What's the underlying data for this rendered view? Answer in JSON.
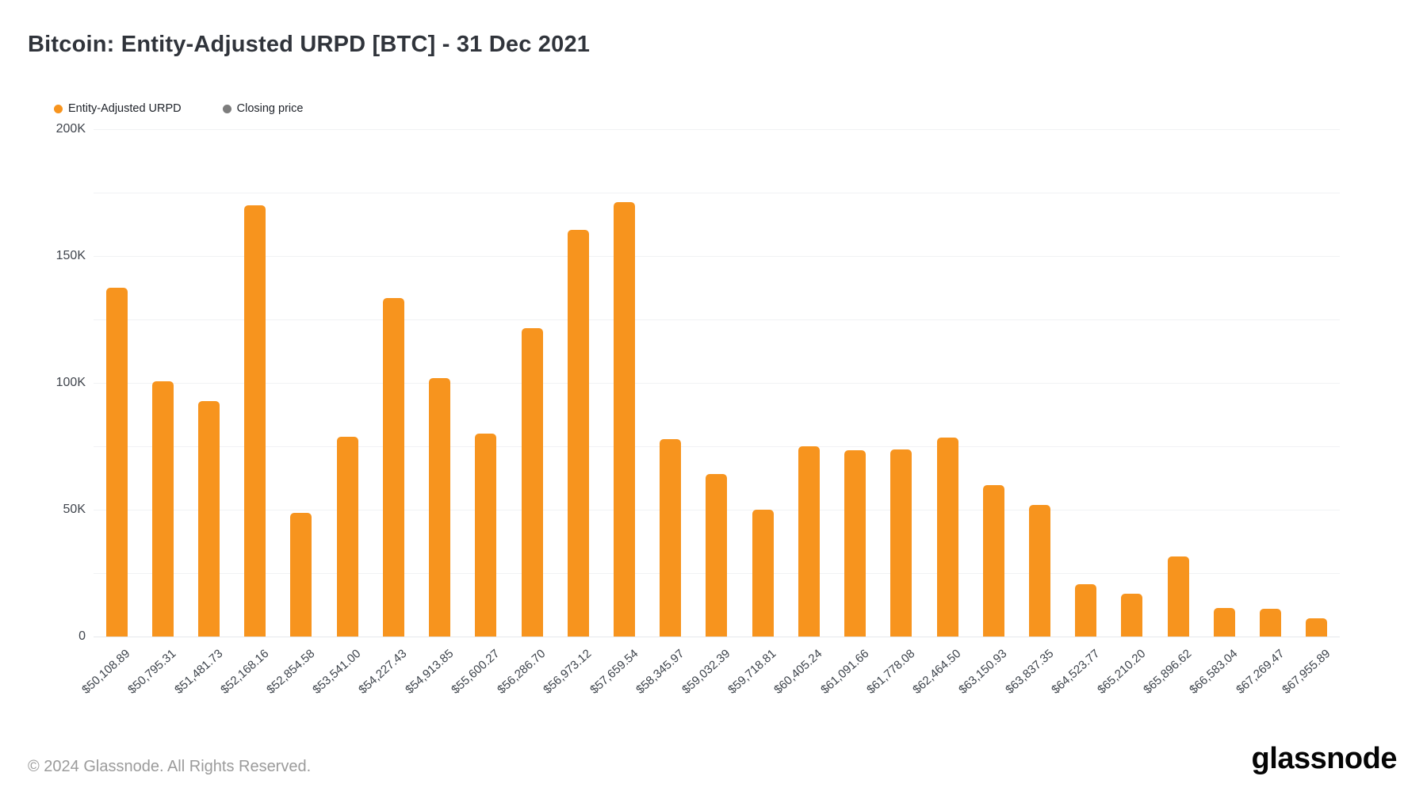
{
  "title": "Bitcoin: Entity-Adjusted URPD [BTC] - 31 Dec 2021",
  "legend": {
    "items": [
      {
        "label": "Entity-Adjusted URPD",
        "color": "#f7941e"
      },
      {
        "label": "Closing price",
        "color": "#7d7d7d"
      }
    ]
  },
  "chart_data": {
    "type": "bar",
    "title": "Bitcoin: Entity-Adjusted URPD [BTC] - 31 Dec 2021",
    "series_name": "Entity-Adjusted URPD",
    "categories": [
      "$50,108.89",
      "$50,795.31",
      "$51,481.73",
      "$52,168.16",
      "$52,854.58",
      "$53,541.00",
      "$54,227.43",
      "$54,913.85",
      "$55,600.27",
      "$56,286.70",
      "$56,973.12",
      "$57,659.54",
      "$58,345.97",
      "$59,032.39",
      "$59,718.81",
      "$60,405.24",
      "$61,091.66",
      "$61,778.08",
      "$62,464.50",
      "$63,150.93",
      "$63,837.35",
      "$64,523.77",
      "$65,210.20",
      "$65,896.62",
      "$66,583.04",
      "$67,269.47",
      "$67,955.89"
    ],
    "values": [
      137500,
      100600,
      92800,
      170000,
      48900,
      78800,
      133400,
      101900,
      80000,
      121600,
      160300,
      171300,
      77800,
      64100,
      50000,
      75000,
      73400,
      73800,
      78500,
      59600,
      51800,
      20500,
      16900,
      31500,
      11200,
      10800,
      7200
    ],
    "xlabel": "",
    "ylabel": "",
    "ylim": [
      0,
      200000
    ],
    "grid_step": 25000,
    "grid": true,
    "legend_position": "top-left",
    "y_ticks": [
      {
        "value": 0,
        "label": "0"
      },
      {
        "value": 50000,
        "label": "50K"
      },
      {
        "value": 100000,
        "label": "100K"
      },
      {
        "value": 150000,
        "label": "150K"
      },
      {
        "value": 200000,
        "label": "200K"
      }
    ],
    "bar_color": "#f7941e"
  },
  "footer": {
    "copyright": "© 2024 Glassnode. All Rights Reserved.",
    "brand": "glassnode"
  }
}
